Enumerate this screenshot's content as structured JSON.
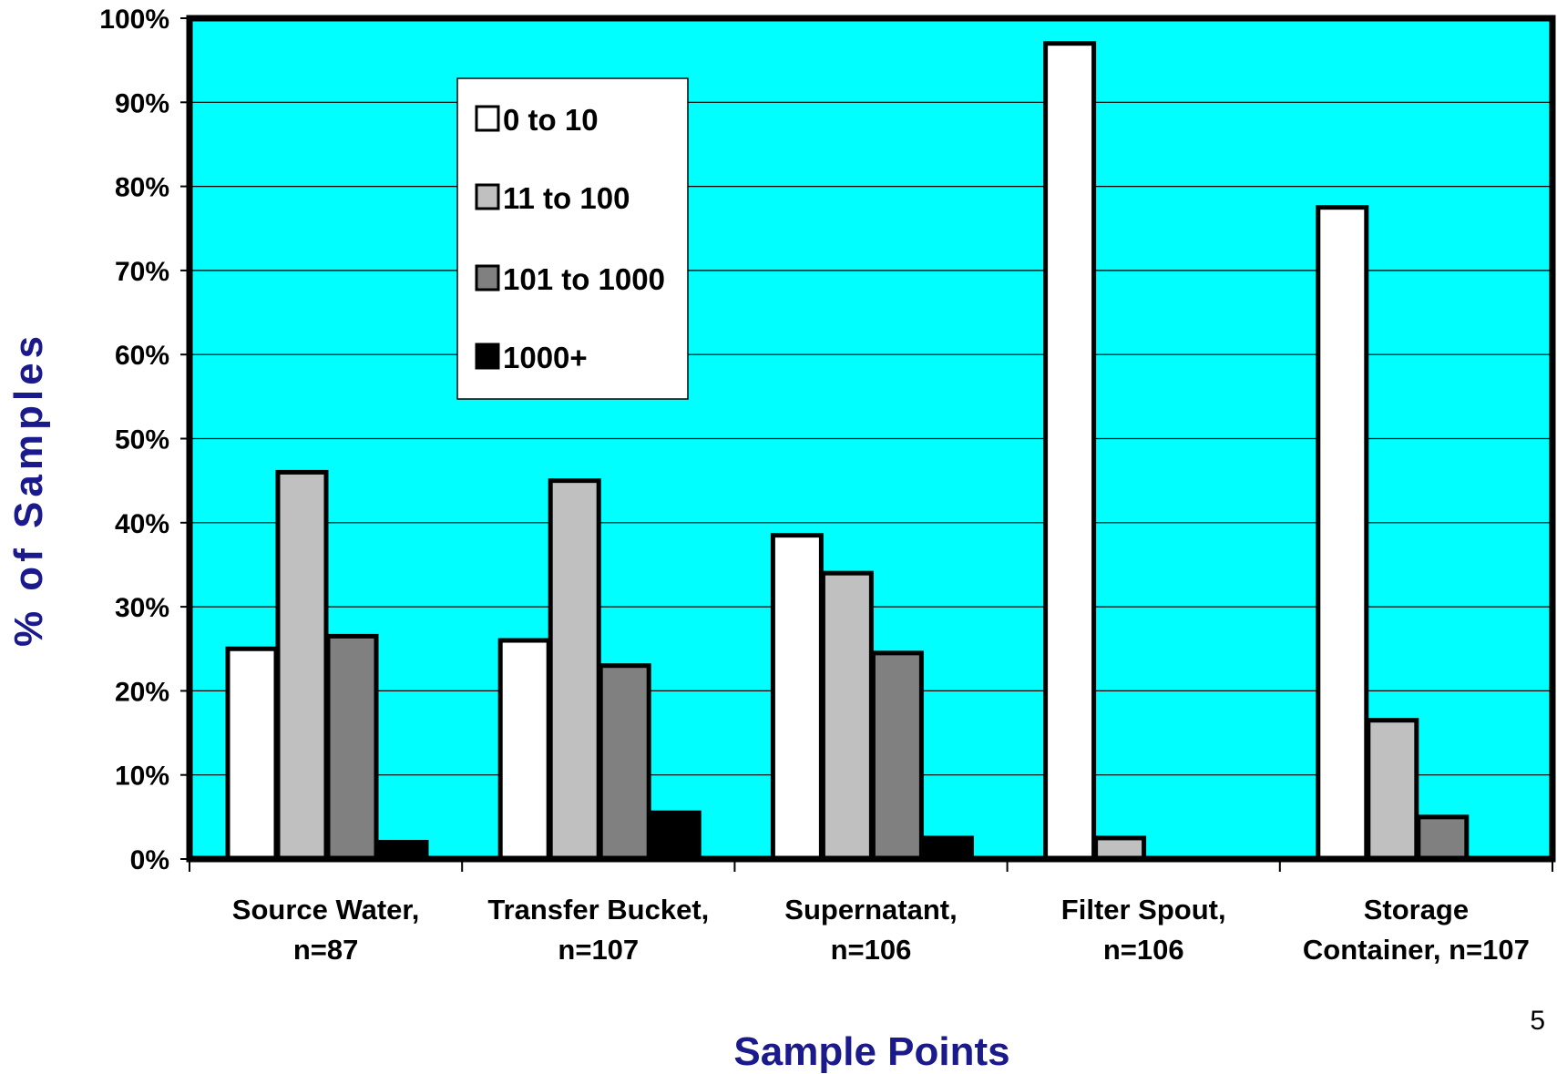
{
  "page_number": "5",
  "colors": {
    "plot_background": "#00ffff",
    "axis_title": "#1a1a8c",
    "series": [
      "#ffffff",
      "#c0c0c0",
      "#808080",
      "#000000"
    ]
  },
  "chart_data": {
    "type": "bar",
    "title": "",
    "xlabel": "Sample Points",
    "ylabel": "% of Samples",
    "ylim": [
      0,
      100
    ],
    "y_ticks": [
      "0%",
      "10%",
      "20%",
      "30%",
      "40%",
      "50%",
      "60%",
      "70%",
      "80%",
      "90%",
      "100%"
    ],
    "grid": "horizontal",
    "legend_position": "top-left",
    "categories": [
      [
        "Source Water,",
        "n=87"
      ],
      [
        "Transfer Bucket,",
        "n=107"
      ],
      [
        "Supernatant,",
        "n=106"
      ],
      [
        "Filter Spout,",
        "n=106"
      ],
      [
        "Storage",
        "Container,  n=107"
      ]
    ],
    "series": [
      {
        "name": "0 to 10",
        "color": "#ffffff",
        "values": [
          25,
          26,
          38.5,
          97,
          77.5
        ]
      },
      {
        "name": "11 to 100",
        "color": "#c0c0c0",
        "values": [
          46,
          45,
          34,
          2.5,
          16.5
        ]
      },
      {
        "name": "101 to 1000",
        "color": "#808080",
        "values": [
          26.5,
          23,
          24.5,
          0,
          5
        ]
      },
      {
        "name": "1000+",
        "color": "#000000",
        "values": [
          2,
          5.5,
          2.5,
          0,
          0
        ]
      }
    ]
  }
}
